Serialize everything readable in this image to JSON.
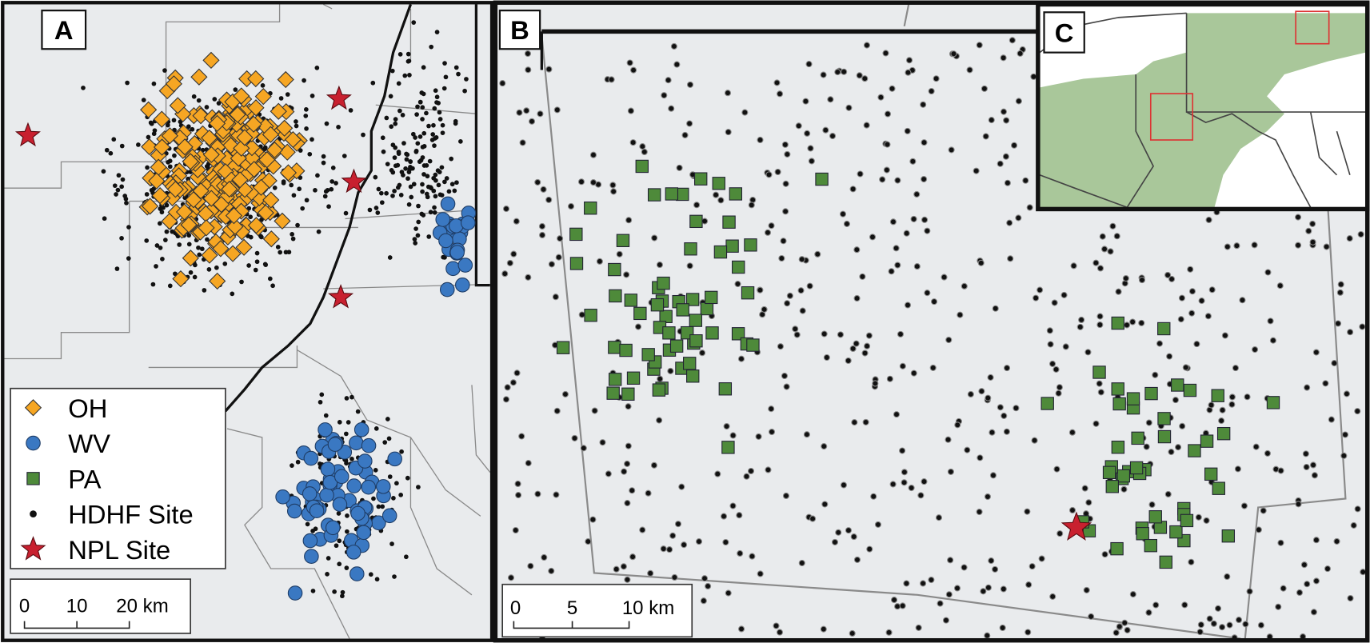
{
  "panels": [
    {
      "label": "A"
    },
    {
      "label": "B"
    },
    {
      "label": "C"
    }
  ],
  "legend": [
    {
      "label": "OH"
    },
    {
      "label": "WV"
    },
    {
      "label": "PA"
    },
    {
      "label": "HDHF Site"
    },
    {
      "label": "NPL Site"
    }
  ],
  "scale_bars": [
    {
      "ticks": [
        "0",
        "10",
        "20 km"
      ]
    },
    {
      "ticks": [
        "0",
        "5",
        "10 km"
      ]
    }
  ]
}
